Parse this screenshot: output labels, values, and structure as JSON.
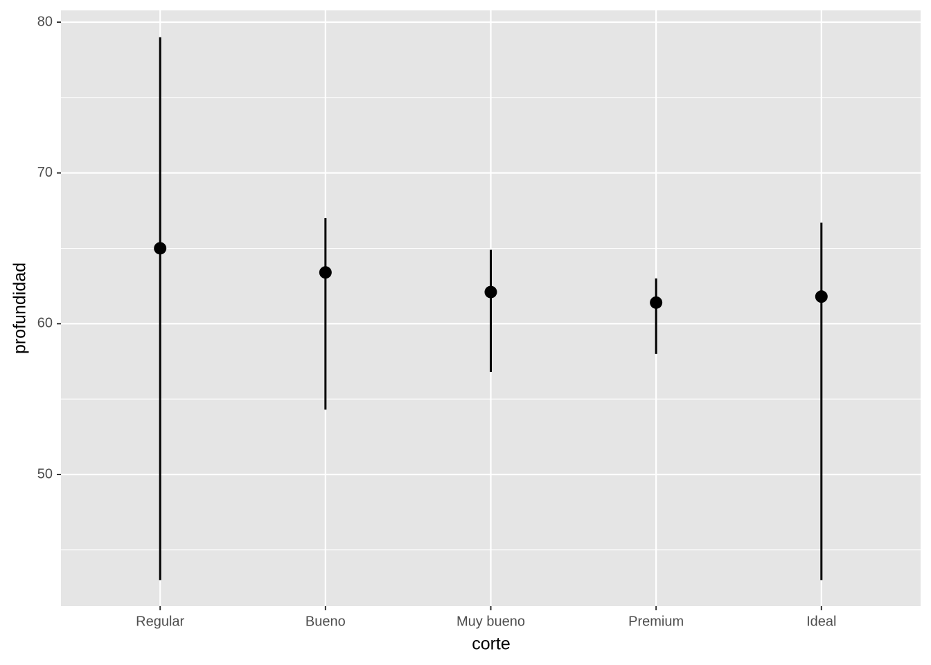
{
  "chart_data": {
    "type": "pointrange",
    "x_label": "corte",
    "y_label": "profundidad",
    "categories": [
      "Regular",
      "Bueno",
      "Muy bueno",
      "Premium",
      "Ideal"
    ],
    "values": [
      65.0,
      63.4,
      62.1,
      61.4,
      61.8
    ],
    "ymin": [
      43.0,
      54.3,
      56.8,
      58.0,
      43.0
    ],
    "ymax": [
      79.0,
      67.0,
      64.9,
      63.0,
      66.7
    ],
    "color": "#000000",
    "ylim": [
      41.27,
      80.78
    ],
    "yticks": [
      50,
      60,
      70,
      80
    ],
    "minor_yticks": [
      45,
      55,
      65,
      75
    ],
    "grid": true
  }
}
